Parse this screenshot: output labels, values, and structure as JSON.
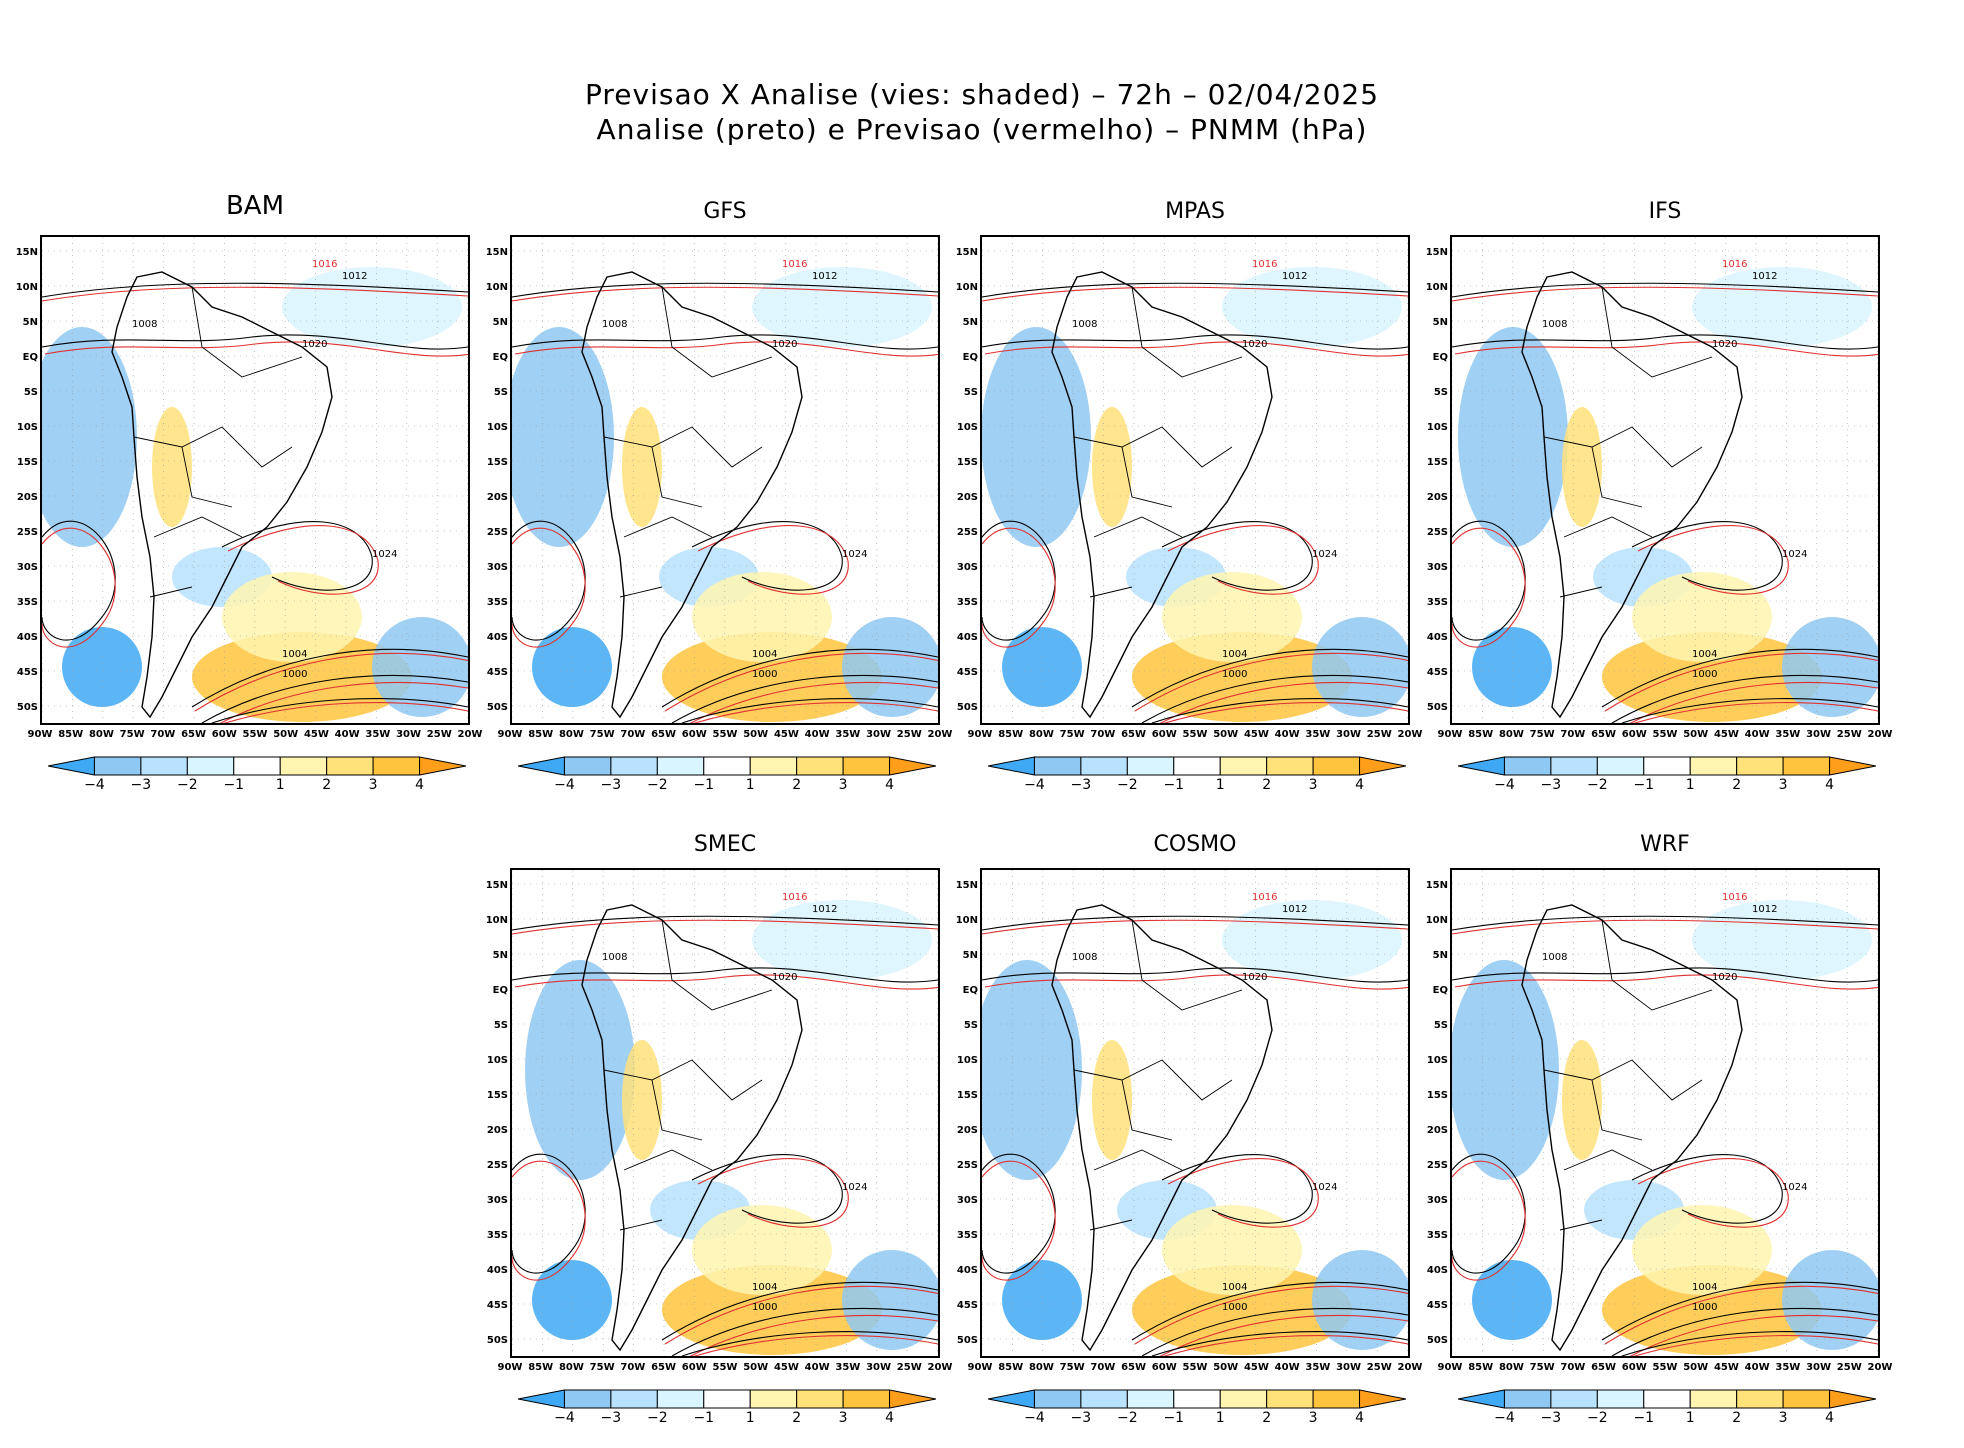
{
  "header": {
    "line1": "Previsao X Analise (vies: shaded) – 72h – 02/04/2025",
    "line2": "Analise (preto) e Previsao (vermelho) – PNMM (hPa)"
  },
  "axes": {
    "lat_labels": [
      "15N",
      "10N",
      "5N",
      "EQ",
      "5S",
      "10S",
      "15S",
      "20S",
      "25S",
      "30S",
      "35S",
      "40S",
      "45S",
      "50S"
    ],
    "lon_labels": [
      "90W",
      "85W",
      "80W",
      "75W",
      "70W",
      "65W",
      "60W",
      "55W",
      "50W",
      "45W",
      "40W",
      "35W",
      "30W",
      "25W",
      "20W"
    ]
  },
  "colorbar": {
    "labels": [
      "−4",
      "−3",
      "−2",
      "−1",
      "1",
      "2",
      "3",
      "4"
    ],
    "colors": [
      "#3fa9f5",
      "#8fc8f2",
      "#b9e2ff",
      "#d9f5ff",
      "#ffffff",
      "#fff5b0",
      "#ffe27a",
      "#ffc43d",
      "#ff9e1a"
    ]
  },
  "panels": [
    {
      "name": "BAM",
      "labels": [
        "1016",
        "1012",
        "1008",
        "1020",
        "1024",
        "1004",
        "1000"
      ]
    },
    {
      "name": "GFS",
      "labels": [
        "1016",
        "1012",
        "1008",
        "1020",
        "1024",
        "1004",
        "1000"
      ]
    },
    {
      "name": "MPAS",
      "labels": [
        "1016",
        "1012",
        "1008",
        "1020",
        "1024",
        "1004",
        "1000"
      ]
    },
    {
      "name": "IFS",
      "labels": [
        "1016",
        "1012",
        "1008",
        "1020",
        "1024",
        "1004",
        "1000"
      ]
    },
    {
      "name": "SMEC",
      "labels": [
        "1016",
        "1012",
        "1008",
        "1020",
        "1024",
        "1004",
        "1000"
      ]
    },
    {
      "name": "COSMO",
      "labels": [
        "1016",
        "1012",
        "1008",
        "1020",
        "1024",
        "1004",
        "1000"
      ]
    },
    {
      "name": "WRF",
      "labels": [
        "1016",
        "1012",
        "1008",
        "1020",
        "1024",
        "1004",
        "1000"
      ]
    }
  ]
}
